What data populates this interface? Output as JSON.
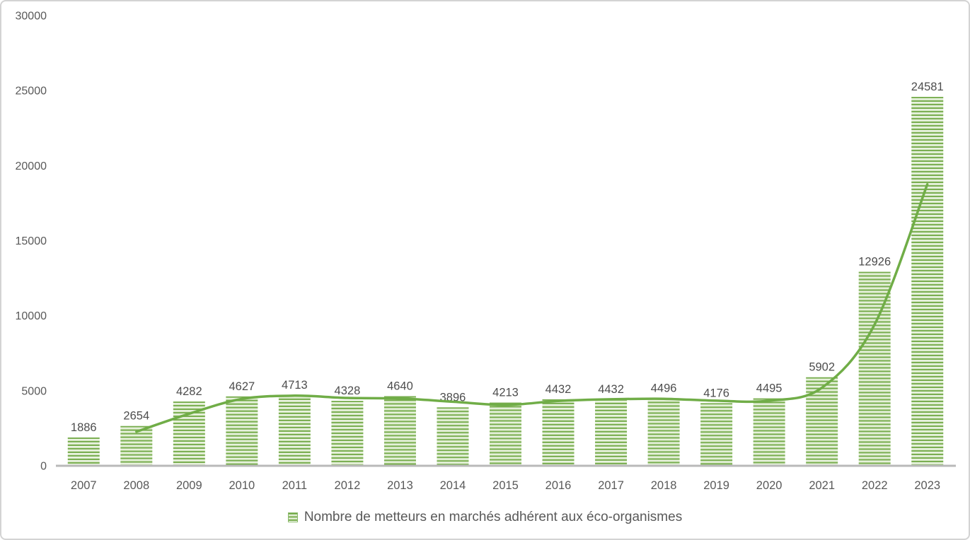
{
  "colors": {
    "bar_green": "#78ad4e",
    "bar_stripe_light_top": "#f9fcf6",
    "bar_stripe_light_bottom": "#cfe3bb",
    "line_green": "#70ad47",
    "axis_line": "#b9b9b9",
    "tick_text": "#595959",
    "data_label_text": "#4d4d4d",
    "frame_border": "#d3d3d3",
    "background": "#ffffff"
  },
  "chart_data": {
    "type": "bar",
    "title": "",
    "xlabel": "",
    "ylabel": "",
    "categories": [
      "2007",
      "2008",
      "2009",
      "2010",
      "2011",
      "2012",
      "2013",
      "2014",
      "2015",
      "2016",
      "2017",
      "2018",
      "2019",
      "2020",
      "2021",
      "2022",
      "2023"
    ],
    "series": [
      {
        "name": "Nombre de metteurs en marchés adhérent aux éco-organismes",
        "type": "bar",
        "values": [
          1886,
          2654,
          4282,
          4627,
          4713,
          4328,
          4640,
          3896,
          4213,
          4432,
          4432,
          4496,
          4176,
          4495,
          5902,
          12926,
          24581
        ],
        "data_labels": [
          "1886",
          "2654",
          "4282",
          "4627",
          "4713",
          "4328",
          "4640",
          "3896",
          "4213",
          "4432",
          "4432",
          "4496",
          "4176",
          "4495",
          "5902",
          "12926",
          "24581"
        ]
      },
      {
        "name": "trendline-moving-average-2",
        "type": "line-smooth",
        "values": [
          null,
          2270,
          3468,
          4454.5,
          4670,
          4520.5,
          4484,
          4268,
          4054.5,
          4322.5,
          4432,
          4464,
          4336,
          4335.5,
          5198.5,
          9414,
          18753.5
        ]
      }
    ],
    "ylim": [
      0,
      30000
    ],
    "yticks": [
      0,
      5000,
      10000,
      15000,
      20000,
      25000,
      30000
    ],
    "ytick_labels": [
      "0",
      "5000",
      "10000",
      "15000",
      "20000",
      "25000",
      "30000"
    ],
    "grid": false,
    "data_labels_shown": true,
    "legend_position": "bottom"
  },
  "legend": {
    "label": "Nombre de metteurs en marchés adhérent aux éco-organismes",
    "swatch_icon": "striped-green-square-icon"
  }
}
